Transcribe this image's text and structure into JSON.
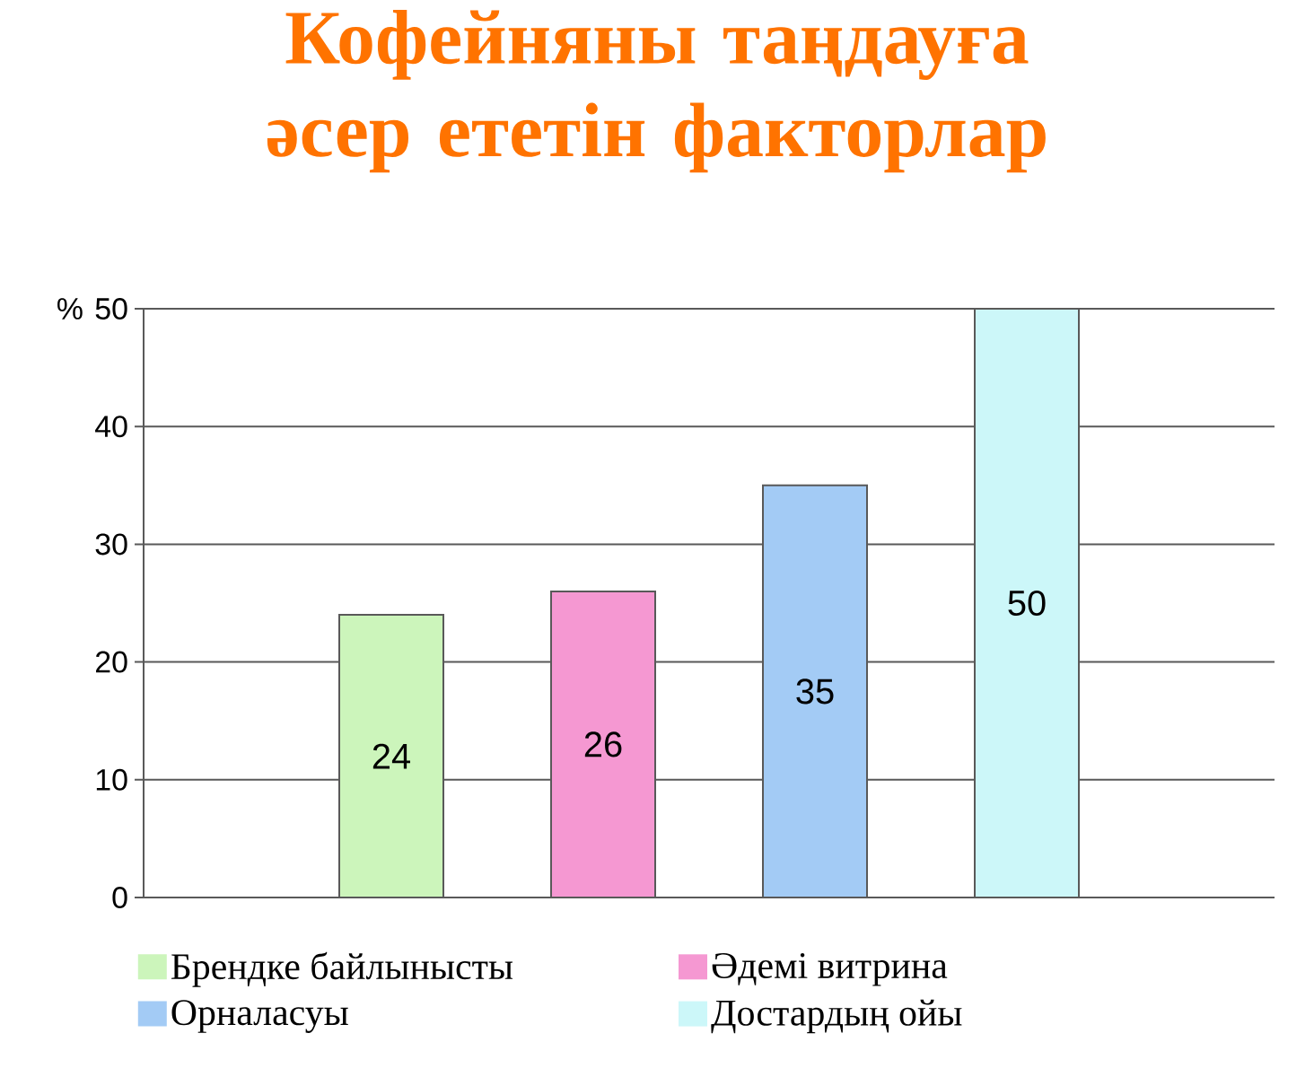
{
  "chart_data": {
    "type": "bar",
    "title": "Кофейняны таңдауға әсер ететін факторлар",
    "categories": [
      null
    ],
    "series": [
      {
        "name": "Брендке байлынысты",
        "color": "#ccf5bb",
        "values": [
          24
        ]
      },
      {
        "name": "Әдемі витрина",
        "color": "#f598d2",
        "values": [
          26
        ]
      },
      {
        "name": "Орналасуы",
        "color": "#a3cbf5",
        "values": [
          35
        ]
      },
      {
        "name": "Достардың ойы",
        "color": "#ccf7f9",
        "values": [
          50
        ]
      }
    ],
    "ylabel": "%",
    "ylim": [
      0,
      50
    ],
    "yticks": [
      0,
      10,
      20,
      30,
      40,
      50
    ],
    "grid": "y",
    "legend": "bottom",
    "data_labels": true
  }
}
